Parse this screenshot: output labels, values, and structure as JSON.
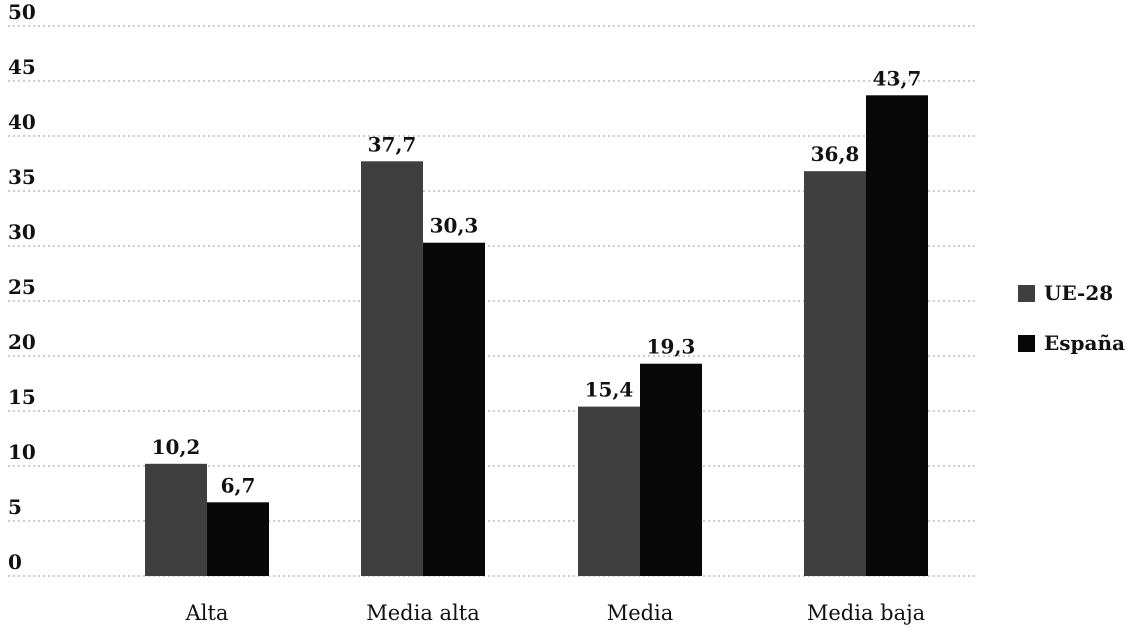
{
  "chart_data": {
    "type": "bar",
    "categories": [
      "Alta",
      "Media alta",
      "Media",
      "Media baja"
    ],
    "series": [
      {
        "name": "UE-28",
        "values": [
          10.2,
          37.7,
          15.4,
          36.8
        ],
        "labels": [
          "10,2",
          "37,7",
          "15,4",
          "36,8"
        ],
        "color": "#3f3f3f"
      },
      {
        "name": "España",
        "values": [
          6.7,
          30.3,
          19.3,
          43.7
        ],
        "labels": [
          "6,7",
          "30,3",
          "19,3",
          "43,7"
        ],
        "color": "#080808"
      }
    ],
    "yticks": [
      "0",
      "5",
      "10",
      "15",
      "20",
      "25",
      "30",
      "35",
      "40",
      "45",
      "50"
    ],
    "ylim": [
      0,
      50
    ],
    "grid": true,
    "legend": "right",
    "title": "",
    "xlabel": "",
    "ylabel": ""
  }
}
